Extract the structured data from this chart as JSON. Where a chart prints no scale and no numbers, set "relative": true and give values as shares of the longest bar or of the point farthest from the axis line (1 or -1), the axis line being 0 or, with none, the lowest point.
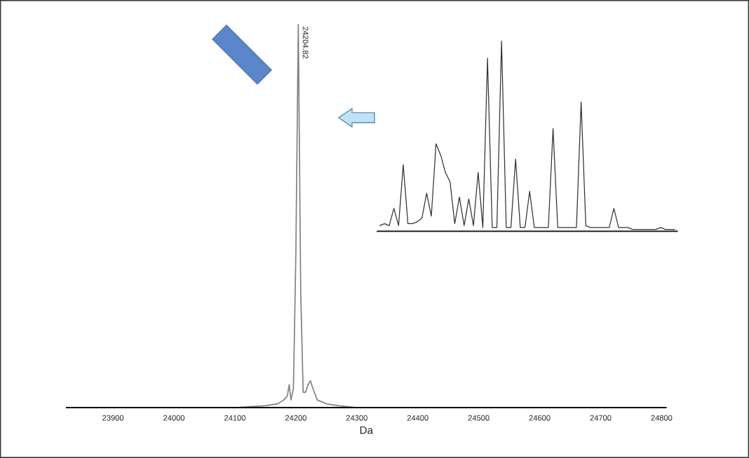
{
  "chart_data": [
    {
      "type": "line",
      "xlabel": "Da",
      "relative": true,
      "tick_labels": "x",
      "grid": false,
      "legend": false,
      "marker": "none",
      "line_style": "solid",
      "xlim": [
        23824,
        24807
      ],
      "xticks": [
        23900,
        24000,
        24100,
        24200,
        24300,
        24400,
        24500,
        24600,
        24700,
        24800
      ],
      "annotations": [
        {
          "text": "24204.82",
          "x": 24204,
          "y": 1.0
        }
      ],
      "series": [
        {
          "color": "#808080",
          "x": [
            23824,
            24100,
            24150,
            24170,
            24180,
            24186,
            24189,
            24192,
            24196,
            24200,
            24204,
            24208,
            24212,
            24216,
            24220,
            24224,
            24228,
            24235,
            24250,
            24270,
            24300,
            24807
          ],
          "values": [
            0,
            0,
            0.005,
            0.01,
            0.02,
            0.03,
            0.06,
            0.02,
            0.05,
            0.4,
            1.0,
            0.3,
            0.04,
            0.04,
            0.06,
            0.07,
            0.05,
            0.02,
            0.01,
            0.005,
            0,
            0
          ]
        }
      ]
    },
    {
      "type": "line",
      "relative": true,
      "tick_labels": false,
      "grid": false,
      "legend": false,
      "marker": "none",
      "line_style": "solid",
      "categories": [
        null,
        null,
        null,
        null,
        null,
        null,
        null,
        null,
        null,
        null,
        null,
        null,
        null,
        null,
        null,
        null,
        null,
        null,
        null,
        null,
        null,
        null,
        null,
        null,
        null,
        null,
        null,
        null,
        null,
        null,
        null,
        null,
        null,
        null,
        null,
        null,
        null,
        null,
        null,
        null,
        null,
        null,
        null,
        null,
        null,
        null,
        null,
        null,
        null,
        null,
        null,
        null,
        null,
        null,
        null,
        null,
        null,
        null,
        null,
        null,
        null,
        null,
        null,
        null
      ],
      "series": [
        {
          "color": "#333333",
          "values": [
            0.03,
            0.04,
            0.03,
            0.12,
            0.03,
            0.35,
            0.04,
            0.04,
            0.05,
            0.07,
            0.2,
            0.08,
            0.46,
            0.4,
            0.31,
            0.26,
            0.04,
            0.18,
            0.03,
            0.17,
            0.03,
            0.31,
            0.02,
            0.91,
            0.02,
            0.02,
            1.0,
            0.02,
            0.02,
            0.38,
            0.02,
            0.02,
            0.21,
            0.02,
            0.02,
            0.02,
            0.02,
            0.54,
            0.02,
            0.02,
            0.02,
            0.02,
            0.02,
            0.68,
            0.03,
            0.02,
            0.02,
            0.02,
            0.02,
            0.02,
            0.12,
            0.02,
            0.02,
            0.02,
            0.01,
            0.01,
            0.01,
            0.01,
            0.01,
            0.01,
            0.02,
            0.01,
            0.01,
            0.01
          ]
        }
      ]
    }
  ]
}
